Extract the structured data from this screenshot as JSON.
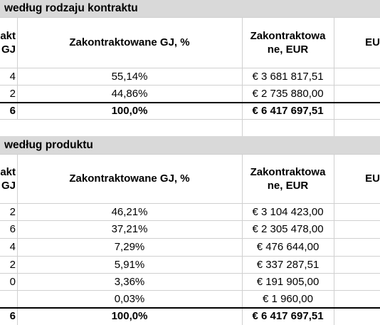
{
  "sections": [
    {
      "title": "według rodzaju kontraktu",
      "col_headers": {
        "first_line1": "akt",
        "first_line2": "GJ",
        "pct": "Zakontraktowane GJ, %",
        "eur_line1": "Zakontraktowa",
        "eur_line2": "ne, EUR",
        "last": "EU"
      },
      "rows": [
        {
          "first": "4",
          "pct": "55,14%",
          "eur": "€ 3 681 817,51"
        },
        {
          "first": "2",
          "pct": "44,86%",
          "eur": "€ 2 735 880,00"
        }
      ],
      "total": {
        "first": "6",
        "pct": "100,0%",
        "eur": "€ 6 417 697,51"
      }
    },
    {
      "title": "według produktu",
      "col_headers": {
        "first_line1": "akt",
        "first_line2": "GJ",
        "pct": "Zakontraktowane GJ, %",
        "eur_line1": "Zakontraktowa",
        "eur_line2": "ne, EUR",
        "last": "EU"
      },
      "rows": [
        {
          "first": "2",
          "pct": "46,21%",
          "eur": "€ 3 104 423,00"
        },
        {
          "first": "6",
          "pct": "37,21%",
          "eur": "€ 2 305 478,00"
        },
        {
          "first": "4",
          "pct": "7,29%",
          "eur": "€ 476 644,00"
        },
        {
          "first": "2",
          "pct": "5,91%",
          "eur": "€ 337 287,51"
        },
        {
          "first": "0",
          "pct": "3,36%",
          "eur": "€ 191 905,00"
        },
        {
          "first": "",
          "pct": "0,03%",
          "eur": "€ 1 960,00"
        }
      ],
      "total": {
        "first": "6",
        "pct": "100,0%",
        "eur": "€ 6 417 697,51"
      }
    }
  ]
}
